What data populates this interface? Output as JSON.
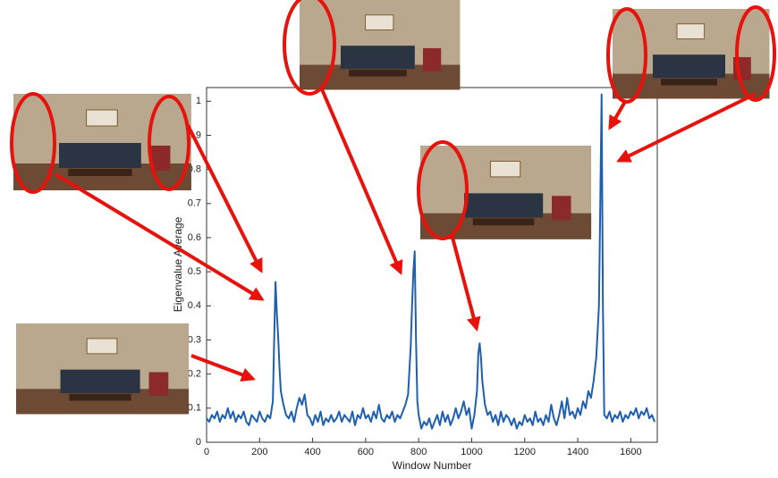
{
  "chart_data": {
    "type": "line",
    "x_label": "Window Number",
    "y_label": "Eigenvalue Average",
    "xlim": [
      0,
      1700
    ],
    "ylim": [
      0,
      1.04
    ],
    "xticks": [
      0,
      200,
      400,
      600,
      800,
      1000,
      1200,
      1400,
      1600
    ],
    "yticks": [
      0,
      0.1,
      0.2,
      0.3,
      0.4,
      0.5,
      0.6,
      0.7,
      0.8,
      0.9,
      1
    ],
    "grid": false,
    "x": [
      0,
      10,
      20,
      30,
      40,
      50,
      60,
      70,
      80,
      90,
      100,
      110,
      120,
      130,
      140,
      150,
      160,
      170,
      180,
      190,
      200,
      210,
      220,
      230,
      240,
      250,
      255,
      260,
      265,
      270,
      275,
      280,
      290,
      300,
      310,
      320,
      330,
      340,
      350,
      360,
      370,
      380,
      390,
      400,
      410,
      420,
      430,
      440,
      450,
      460,
      470,
      480,
      490,
      500,
      510,
      520,
      530,
      540,
      550,
      560,
      570,
      580,
      590,
      600,
      610,
      620,
      630,
      640,
      650,
      660,
      670,
      680,
      690,
      700,
      710,
      720,
      730,
      740,
      750,
      760,
      770,
      775,
      780,
      785,
      790,
      795,
      800,
      810,
      820,
      830,
      840,
      850,
      860,
      870,
      880,
      890,
      900,
      910,
      920,
      930,
      940,
      950,
      960,
      970,
      980,
      990,
      1000,
      1010,
      1020,
      1025,
      1030,
      1035,
      1040,
      1050,
      1060,
      1070,
      1080,
      1090,
      1100,
      1110,
      1120,
      1130,
      1140,
      1150,
      1160,
      1170,
      1180,
      1190,
      1200,
      1210,
      1220,
      1230,
      1240,
      1250,
      1260,
      1270,
      1280,
      1290,
      1300,
      1310,
      1320,
      1330,
      1340,
      1350,
      1360,
      1370,
      1380,
      1390,
      1400,
      1410,
      1420,
      1430,
      1440,
      1450,
      1460,
      1470,
      1480,
      1485,
      1490,
      1495,
      1500,
      1510,
      1520,
      1530,
      1540,
      1550,
      1560,
      1570,
      1580,
      1590,
      1600,
      1610,
      1620,
      1630,
      1640,
      1650,
      1660,
      1670,
      1680,
      1690
    ],
    "series": [
      {
        "color": "#1f5fb0",
        "values": [
          0.07,
          0.06,
          0.08,
          0.07,
          0.09,
          0.06,
          0.08,
          0.07,
          0.1,
          0.07,
          0.09,
          0.06,
          0.08,
          0.07,
          0.09,
          0.06,
          0.05,
          0.08,
          0.07,
          0.06,
          0.09,
          0.07,
          0.06,
          0.08,
          0.07,
          0.12,
          0.3,
          0.47,
          0.38,
          0.31,
          0.22,
          0.15,
          0.11,
          0.08,
          0.07,
          0.09,
          0.06,
          0.1,
          0.13,
          0.11,
          0.14,
          0.08,
          0.07,
          0.05,
          0.08,
          0.06,
          0.09,
          0.05,
          0.07,
          0.06,
          0.08,
          0.06,
          0.07,
          0.09,
          0.06,
          0.08,
          0.07,
          0.06,
          0.09,
          0.05,
          0.08,
          0.07,
          0.1,
          0.07,
          0.08,
          0.06,
          0.09,
          0.07,
          0.11,
          0.07,
          0.06,
          0.08,
          0.07,
          0.09,
          0.06,
          0.08,
          0.07,
          0.09,
          0.11,
          0.14,
          0.28,
          0.4,
          0.5,
          0.56,
          0.3,
          0.12,
          0.08,
          0.04,
          0.06,
          0.05,
          0.07,
          0.04,
          0.06,
          0.08,
          0.05,
          0.09,
          0.06,
          0.08,
          0.05,
          0.07,
          0.1,
          0.07,
          0.09,
          0.12,
          0.08,
          0.1,
          0.04,
          0.08,
          0.15,
          0.26,
          0.29,
          0.25,
          0.18,
          0.11,
          0.08,
          0.09,
          0.06,
          0.08,
          0.05,
          0.09,
          0.06,
          0.08,
          0.07,
          0.05,
          0.07,
          0.04,
          0.06,
          0.05,
          0.08,
          0.06,
          0.07,
          0.05,
          0.09,
          0.06,
          0.07,
          0.05,
          0.08,
          0.06,
          0.11,
          0.07,
          0.05,
          0.08,
          0.12,
          0.07,
          0.13,
          0.08,
          0.09,
          0.07,
          0.1,
          0.08,
          0.12,
          0.1,
          0.15,
          0.13,
          0.18,
          0.25,
          0.4,
          0.7,
          1.02,
          0.4,
          0.08,
          0.07,
          0.09,
          0.06,
          0.08,
          0.07,
          0.09,
          0.06,
          0.08,
          0.07,
          0.09,
          0.08,
          0.1,
          0.07,
          0.09,
          0.08,
          0.1,
          0.07,
          0.08,
          0.06
        ]
      }
    ]
  }
}
